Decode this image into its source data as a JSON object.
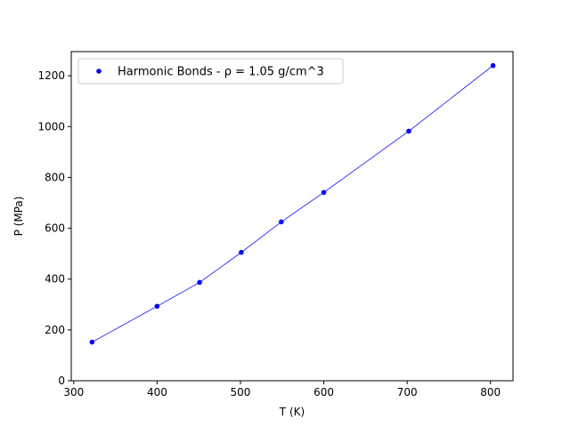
{
  "chart_data": {
    "type": "line",
    "xlabel": "T (K)",
    "ylabel": "P (MPa)",
    "xlim": [
      297,
      827
    ],
    "ylim": [
      0,
      1295
    ],
    "x_ticks": [
      300,
      400,
      500,
      600,
      700,
      800
    ],
    "y_ticks": [
      0,
      200,
      400,
      600,
      800,
      1000,
      1200
    ],
    "grid": false,
    "legend_position": "top-left",
    "series": [
      {
        "name": "Harmonic Bonds - ρ = 1.05 g/cm^3",
        "color": "#0000ff",
        "marker": "circle",
        "x": [
          322,
          400,
          451,
          501,
          549,
          600,
          702,
          803
        ],
        "y": [
          152,
          293,
          387,
          505,
          625,
          741,
          982,
          1240
        ]
      }
    ]
  }
}
